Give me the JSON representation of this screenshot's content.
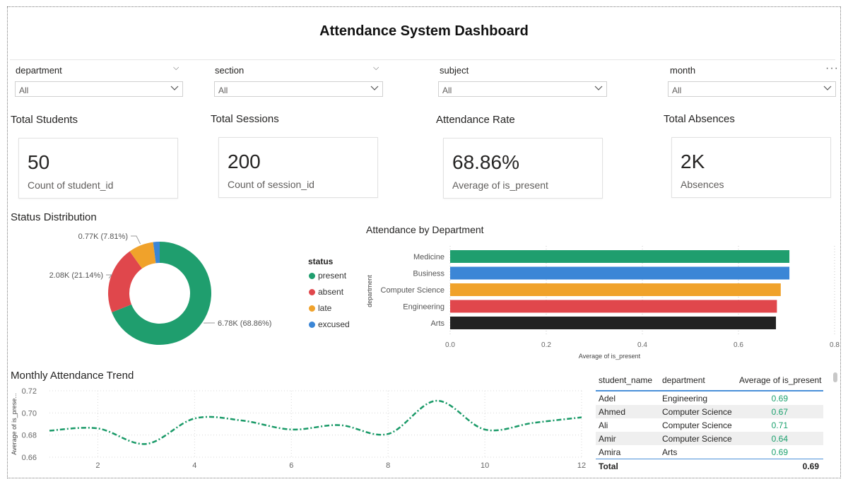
{
  "header": {
    "title": "Attendance System Dashboard"
  },
  "filters": [
    {
      "label": "department",
      "value": "All"
    },
    {
      "label": "section",
      "value": "All"
    },
    {
      "label": "subject",
      "value": "All"
    },
    {
      "label": "month",
      "value": "All"
    }
  ],
  "more_options": "···",
  "kpis": [
    {
      "title": "Total Students",
      "value": "50",
      "sub": "Count of student_id"
    },
    {
      "title": "Total Sessions",
      "value": "200",
      "sub": "Count of session_id"
    },
    {
      "title": "Attendance Rate",
      "value": "68.86%",
      "sub": "Average of is_present"
    },
    {
      "title": "Total Absences",
      "value": "2K",
      "sub": "Absences"
    }
  ],
  "status_chart": {
    "title": "Status Distribution",
    "legend_title": "status",
    "colors": [
      "#1f9e6e",
      "#e0474c",
      "#f0a22b",
      "#3b86d6"
    ]
  },
  "dept_chart": {
    "title": "Attendance by Department"
  },
  "trend_chart": {
    "title": "Monthly Attendance Trend",
    "color": "#1a9a68"
  },
  "table": {
    "headers": [
      "student_name",
      "department",
      "Average of is_present"
    ],
    "rows": [
      [
        "Adel",
        "Engineering",
        "0.69"
      ],
      [
        "Ahmed",
        "Computer Science",
        "0.67"
      ],
      [
        "Ali",
        "Computer Science",
        "0.71"
      ],
      [
        "Amir",
        "Computer Science",
        "0.64"
      ],
      [
        "Amira",
        "Arts",
        "0.69"
      ]
    ],
    "total_label": "Total",
    "total_value": "0.69"
  },
  "chart_data": [
    {
      "type": "pie",
      "title": "Status Distribution",
      "categories": [
        "present",
        "absent",
        "late",
        "excused"
      ],
      "values": [
        6780,
        2080,
        770,
        200
      ],
      "labels": [
        "6.78K (68.86%)",
        "2.08K (21.14%)",
        "0.77K (7.81%)",
        ""
      ],
      "legend": "right"
    },
    {
      "type": "bar",
      "orientation": "horizontal",
      "title": "Attendance by Department",
      "categories": [
        "Medicine",
        "Business",
        "Computer Science",
        "Engineering",
        "Arts"
      ],
      "values": [
        0.706,
        0.706,
        0.688,
        0.68,
        0.678
      ],
      "colors": [
        "#1f9e6e",
        "#3b86d6",
        "#f0a22b",
        "#e0474c",
        "#222222"
      ],
      "xlabel": "Average of is_present",
      "ylabel": "department",
      "xlim": [
        0,
        0.8
      ],
      "xticks": [
        "0.0",
        "0.2",
        "0.4",
        "0.6",
        "0.8"
      ]
    },
    {
      "type": "line",
      "title": "Monthly Attendance Trend",
      "x": [
        1,
        2,
        3,
        4,
        5,
        6,
        7,
        8,
        9,
        10,
        11,
        12
      ],
      "values": [
        0.684,
        0.686,
        0.672,
        0.695,
        0.693,
        0.685,
        0.689,
        0.681,
        0.711,
        0.685,
        0.691,
        0.696
      ],
      "ylabel": "Average of is_prese...",
      "xlim": [
        1,
        12
      ],
      "ylim": [
        0.66,
        0.72
      ],
      "xticks": [
        "2",
        "4",
        "6",
        "8",
        "10",
        "12"
      ],
      "yticks": [
        "0.66",
        "0.68",
        "0.70",
        "0.72"
      ]
    }
  ]
}
